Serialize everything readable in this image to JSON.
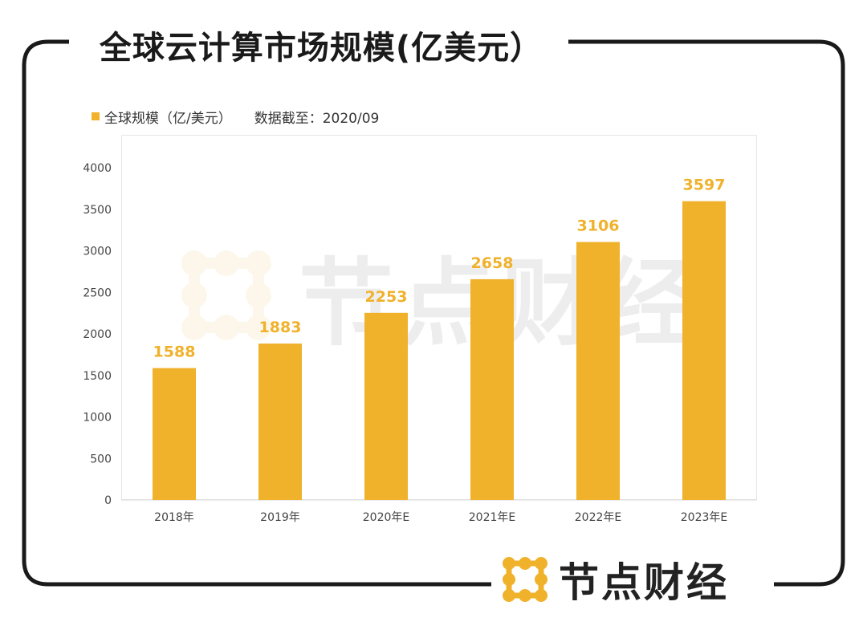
{
  "header": {
    "title": "全球云计算市场规模(亿美元）"
  },
  "legend": {
    "series_label": "全球规模（亿/美元）",
    "note": "数据截至：2020/09",
    "swatch_color": "#F0B12B"
  },
  "branding": {
    "name": "节点财经",
    "logo_icon": "dot-grid-logo-icon",
    "logo_color": "#F0B12B"
  },
  "chart_data": {
    "type": "bar",
    "categories": [
      "2018年",
      "2019年",
      "2020年E",
      "2021年E",
      "2022年E",
      "2023年E"
    ],
    "series": [
      {
        "name": "全球规模（亿/美元）",
        "values": [
          1588,
          1883,
          2253,
          2658,
          3106,
          3597
        ],
        "color": "#F0B12B"
      }
    ],
    "ylim": [
      0,
      4000
    ],
    "yticks": [
      0,
      500,
      1000,
      1500,
      2000,
      2500,
      3000,
      3500,
      4000
    ],
    "data_labels": true,
    "grid": false,
    "legend_position": "top-left",
    "title": "",
    "xlabel": "",
    "ylabel": ""
  }
}
